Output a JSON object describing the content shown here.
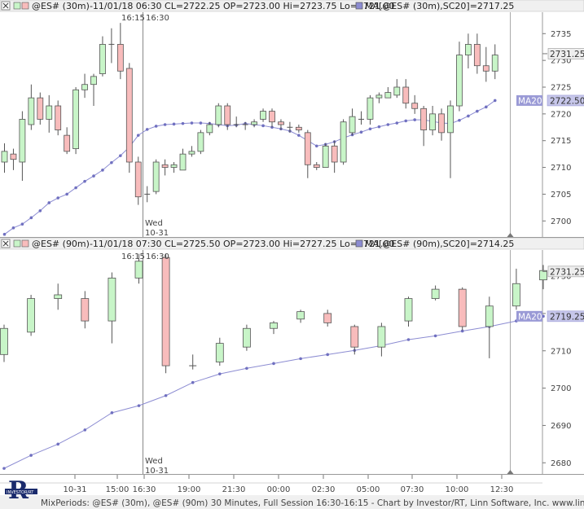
{
  "footer": {
    "text": "MixPeriods: @ES# (30m), @ES# (90m) 30 Minutes, Full Session 16:30-16:15 - Chart by Investor/RT, Linn Software, Inc. www.linnsoft.com"
  },
  "logo": {
    "letter": "R",
    "small_text": "INVESTOR/RT"
  },
  "colors": {
    "up_fill": "#c8f5c8",
    "down_fill": "#f8bcbc",
    "wick": "#555555",
    "ma_line": "#8c8cd2",
    "ma_dot": "#7070c0",
    "ma_tag": "#9a9ad6",
    "grid_bg": "#ffffff",
    "panel_line": "#999999"
  },
  "time_axis": {
    "labels": [
      "10-31",
      "15:00",
      "16:30",
      "19:00",
      "21:30",
      "00:00",
      "02:30",
      "05:00",
      "07:30",
      "10:00",
      "12:30"
    ],
    "session_break_top": "16:15",
    "session_break_top_right": "16:30",
    "session_break_bottom": "Wed",
    "session_break_bottom2": "10-31"
  },
  "chart_data": [
    {
      "type": "candlestick",
      "title": "@ES# (30m)-11/01/18 06:30",
      "ohlc_text": "CL=2722.25 OP=2723.00 Hi=2723.75 Lo=2721.00",
      "ma_text": "MA[@ES# (30m),SC20]=2717.25",
      "ylim": [
        2697,
        2739
      ],
      "y_ticks": [
        2700,
        2705,
        2710,
        2715,
        2720,
        2725,
        2730,
        2735
      ],
      "last_price": "2731.25",
      "ma_label": "MA20",
      "ma_value": "2722.50",
      "ma_value_num": 2722.5,
      "last_price_num": 2731.25,
      "candles": [
        [
          2711.0,
          2713.0,
          2709.0,
          2714.5
        ],
        [
          2712.5,
          2711.5,
          2709.5,
          2713.5
        ],
        [
          2711.0,
          2719.0,
          2707.5,
          2720.5
        ],
        [
          2718.0,
          2723.0,
          2717.0,
          2725.5
        ],
        [
          2723.0,
          2719.0,
          2718.0,
          2724.0
        ],
        [
          2719.0,
          2721.5,
          2716.5,
          2723.5
        ],
        [
          2721.5,
          2717.0,
          2716.0,
          2722.5
        ],
        [
          2716.0,
          2713.0,
          2712.5,
          2717.5
        ],
        [
          2713.5,
          2724.5,
          2712.5,
          2725.0
        ],
        [
          2724.5,
          2725.5,
          2723.0,
          2727.5
        ],
        [
          2725.5,
          2727.0,
          2721.5,
          2727.5
        ],
        [
          2727.5,
          2733.0,
          2727.0,
          2734.5
        ],
        [
          2733.0,
          2733.0,
          2729.5,
          2736.0
        ],
        [
          2733.0,
          2728.0,
          2726.5,
          2737.0
        ],
        [
          2728.5,
          2711.0,
          2709.0,
          2729.5
        ],
        [
          2711.0,
          2704.5,
          2703.0,
          2712.0
        ],
        [
          2705.0,
          2705.0,
          2703.5,
          2706.5
        ],
        [
          2705.5,
          2711.0,
          2705.0,
          2711.5
        ],
        [
          2710.5,
          2710.0,
          2708.5,
          2711.5
        ],
        [
          2710.0,
          2710.5,
          2709.0,
          2711.0
        ],
        [
          2709.5,
          2712.5,
          2709.5,
          2713.5
        ],
        [
          2712.5,
          2713.0,
          2712.0,
          2714.0
        ],
        [
          2713.0,
          2716.5,
          2712.5,
          2717.0
        ],
        [
          2716.5,
          2718.0,
          2716.0,
          2718.5
        ],
        [
          2718.0,
          2721.5,
          2717.5,
          2722.0
        ],
        [
          2721.5,
          2718.0,
          2717.0,
          2722.0
        ],
        [
          2718.0,
          2718.0,
          2717.5,
          2719.5
        ],
        [
          2718.0,
          2718.0,
          2717.0,
          2718.5
        ],
        [
          2718.0,
          2718.5,
          2717.5,
          2719.0
        ],
        [
          2719.0,
          2720.5,
          2718.5,
          2721.0
        ],
        [
          2720.5,
          2718.5,
          2717.5,
          2721.0
        ],
        [
          2718.5,
          2718.0,
          2717.0,
          2719.0
        ],
        [
          2717.5,
          2717.5,
          2716.5,
          2718.5
        ],
        [
          2717.5,
          2717.0,
          2716.5,
          2718.0
        ],
        [
          2716.5,
          2710.5,
          2708.0,
          2717.0
        ],
        [
          2710.5,
          2710.0,
          2709.5,
          2711.0
        ],
        [
          2710.0,
          2714.0,
          2710.0,
          2714.5
        ],
        [
          2714.0,
          2711.0,
          2709.0,
          2715.0
        ],
        [
          2711.0,
          2718.5,
          2710.5,
          2719.0
        ],
        [
          2716.5,
          2719.5,
          2716.0,
          2721.0
        ],
        [
          2719.0,
          2719.0,
          2718.0,
          2720.5
        ],
        [
          2719.0,
          2723.0,
          2718.0,
          2723.5
        ],
        [
          2723.0,
          2723.5,
          2722.0,
          2724.0
        ],
        [
          2723.0,
          2724.0,
          2723.0,
          2725.0
        ],
        [
          2723.5,
          2725.0,
          2723.0,
          2726.5
        ],
        [
          2725.0,
          2722.0,
          2721.0,
          2726.5
        ],
        [
          2722.0,
          2721.0,
          2720.0,
          2723.5
        ],
        [
          2721.0,
          2717.0,
          2714.0,
          2721.5
        ],
        [
          2717.0,
          2720.0,
          2716.0,
          2721.5
        ],
        [
          2720.0,
          2716.5,
          2715.0,
          2721.0
        ],
        [
          2716.5,
          2721.5,
          2708.0,
          2722.5
        ],
        [
          2721.5,
          2731.0,
          2720.5,
          2733.5
        ],
        [
          2731.0,
          2733.0,
          2728.5,
          2735.0
        ],
        [
          2733.0,
          2729.0,
          2727.5,
          2735.0
        ],
        [
          2729.0,
          2728.0,
          2726.0,
          2732.5
        ],
        [
          2728.0,
          2731.0,
          2726.5,
          2733.0
        ]
      ],
      "ma": [
        2697.5,
        2698.7,
        2699.4,
        2700.6,
        2701.9,
        2703.4,
        2704.3,
        2705.0,
        2706.2,
        2707.4,
        2708.4,
        2709.5,
        2710.9,
        2712.2,
        2713.8,
        2716.0,
        2717.1,
        2717.7,
        2718.0,
        2718.1,
        2718.2,
        2718.3,
        2718.3,
        2718.2,
        2718.0,
        2717.8,
        2717.9,
        2718.2,
        2718.0,
        2717.8,
        2717.5,
        2717.2,
        2716.8,
        2716.0,
        2715.0,
        2714.0,
        2714.3,
        2714.8,
        2715.5,
        2716.1,
        2716.6,
        2717.2,
        2717.6,
        2718.0,
        2718.3,
        2718.7,
        2718.9,
        2718.9,
        2718.6,
        2718.3,
        2718.2,
        2718.8,
        2719.6,
        2720.5,
        2721.3,
        2722.5
      ]
    },
    {
      "type": "candlestick",
      "title": "@ES# (90m)-11/01/18 07:30",
      "ohlc_text": "CL=2725.50 OP=2723.00 Hi=2727.25 Lo=2721.00",
      "ma_text": "MA[@ES# (90m),SC20]=2714.25",
      "ylim": [
        2677,
        2737
      ],
      "y_ticks": [
        2680,
        2690,
        2700,
        2710,
        2720,
        2730
      ],
      "last_price": "2731.25",
      "ma_label": "MA20",
      "ma_value": "2719.25",
      "ma_value_num": 2719.25,
      "last_price_num": 2731.25,
      "candles": [
        [
          2709.0,
          2716.0,
          2707.0,
          2717.0
        ],
        [
          2715.0,
          2724.0,
          2714.0,
          2725.0
        ],
        [
          2724.0,
          2725.0,
          2721.0,
          2728.0
        ],
        [
          2724.0,
          2718.0,
          2716.0,
          2726.0
        ],
        [
          2718.0,
          2729.5,
          2712.0,
          2731.0
        ],
        [
          2729.5,
          2734.0,
          2728.0,
          2736.0
        ],
        [
          2735.0,
          2706.0,
          2704.0,
          2736.0
        ],
        [
          2706.0,
          2706.0,
          2705.0,
          2709.0
        ],
        [
          2707.0,
          2712.0,
          2706.0,
          2713.5
        ],
        [
          2711.0,
          2716.0,
          2710.0,
          2717.0
        ],
        [
          2716.0,
          2717.5,
          2714.5,
          2718.0
        ],
        [
          2718.5,
          2720.5,
          2717.5,
          2721.0
        ],
        [
          2720.0,
          2717.5,
          2716.5,
          2721.0
        ],
        [
          2716.5,
          2711.0,
          2709.0,
          2717.0
        ],
        [
          2711.0,
          2716.5,
          2708.5,
          2717.5
        ],
        [
          2718.0,
          2724.0,
          2716.5,
          2724.5
        ],
        [
          2724.0,
          2726.5,
          2723.5,
          2727.5
        ],
        [
          2726.5,
          2716.5,
          2715.5,
          2727.0
        ],
        [
          2716.5,
          2722.0,
          2708.0,
          2724.5
        ],
        [
          2722.0,
          2728.0,
          2721.0,
          2732.0
        ],
        [
          2729.0,
          2731.5,
          2726.5,
          2733.0
        ]
      ],
      "ma": [
        2678.5,
        2682.0,
        2685.0,
        2688.8,
        2693.4,
        2695.3,
        2698.0,
        2701.5,
        2703.8,
        2705.3,
        2706.6,
        2707.9,
        2709.0,
        2710.1,
        2711.4,
        2713.0,
        2714.0,
        2715.3,
        2716.5,
        2718.0,
        2719.25
      ]
    }
  ]
}
